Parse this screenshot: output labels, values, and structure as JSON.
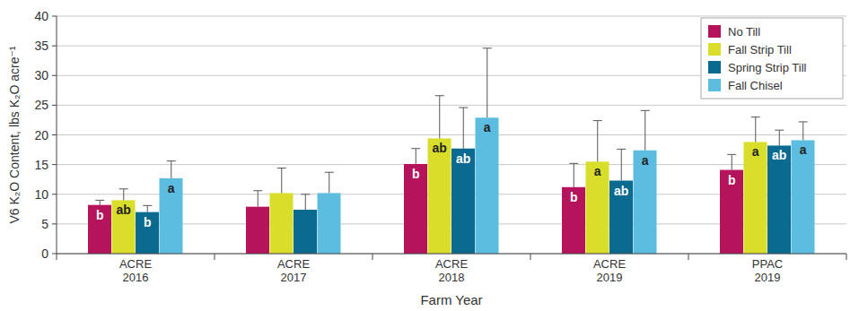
{
  "chart_data": {
    "type": "bar",
    "y_label": "V6 K₂O Content, lbs K₂O acre⁻¹",
    "x_label": "Farm Year",
    "categories": [
      "ACRE 2016",
      "ACRE 2017",
      "ACRE 2018",
      "ACRE 2019",
      "PPAC 2019"
    ],
    "series": [
      {
        "name": "No Till",
        "color": "#b5135c",
        "values": [
          8.2,
          7.9,
          15.1,
          11.2,
          14.1
        ],
        "errors": [
          0.8,
          2.7,
          2.6,
          4.0,
          2.6
        ],
        "letters": [
          "b",
          null,
          "b",
          "b",
          "b"
        ]
      },
      {
        "name": "Fall Strip Till",
        "color": "#d8de2a",
        "values": [
          9.0,
          10.2,
          19.4,
          15.5,
          18.8
        ],
        "errors": [
          1.9,
          4.2,
          7.2,
          6.9,
          4.2
        ],
        "letters": [
          "ab",
          null,
          "ab",
          "a",
          "a"
        ]
      },
      {
        "name": "Spring Strip Till",
        "color": "#0a6a8f",
        "values": [
          7.0,
          7.4,
          17.7,
          12.3,
          18.2
        ],
        "errors": [
          1.1,
          2.6,
          6.9,
          5.3,
          2.6
        ],
        "letters": [
          "b",
          null,
          "ab",
          "ab",
          "ab"
        ]
      },
      {
        "name": "Fall Chisel",
        "color": "#5cbde0",
        "values": [
          12.7,
          10.2,
          22.9,
          17.4,
          19.1
        ],
        "errors": [
          2.9,
          3.5,
          11.7,
          6.7,
          3.1
        ],
        "letters": [
          "a",
          null,
          "a",
          "a",
          "a"
        ]
      }
    ],
    "ylim": [
      0,
      40
    ],
    "yticks": [
      0,
      5,
      10,
      15,
      20,
      25,
      30,
      35,
      40
    ],
    "grid": true,
    "legend": "upper right"
  }
}
